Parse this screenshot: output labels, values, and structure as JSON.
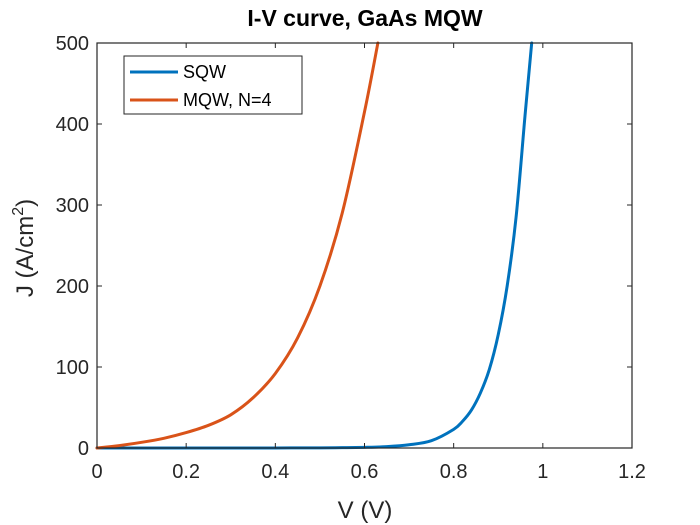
{
  "chart_data": {
    "type": "line",
    "title": "I-V curve, GaAs MQW",
    "xlabel": "V (V)",
    "ylabel_main": "J (A/cm",
    "ylabel_sup": "2",
    "ylabel_close": ")",
    "xlim": [
      0,
      1.2
    ],
    "ylim": [
      0,
      500
    ],
    "xticks": [
      0,
      0.2,
      0.4,
      0.6,
      0.8,
      1,
      1.2
    ],
    "xtick_labels": [
      "0",
      "0.2",
      "0.4",
      "0.6",
      "0.8",
      "1",
      "1.2"
    ],
    "yticks": [
      0,
      100,
      200,
      300,
      400,
      500
    ],
    "ytick_labels": [
      "0",
      "100",
      "200",
      "300",
      "400",
      "500"
    ],
    "grid": true,
    "legend_position": "top-left",
    "series": [
      {
        "name": "SQW",
        "color": "#0072BD",
        "x": [
          0,
          0.1,
          0.2,
          0.3,
          0.4,
          0.5,
          0.55,
          0.6,
          0.65,
          0.7,
          0.75,
          0.8,
          0.82,
          0.84,
          0.86,
          0.88,
          0.9,
          0.92,
          0.94,
          0.96,
          0.975
        ],
        "y": [
          0,
          0,
          0,
          0,
          0.05,
          0.2,
          0.4,
          0.8,
          1.7,
          4,
          9,
          23,
          33,
          47,
          68,
          97,
          140,
          200,
          285,
          410,
          500
        ]
      },
      {
        "name": "MQW, N=4",
        "color": "#D95319",
        "x": [
          0,
          0.05,
          0.1,
          0.15,
          0.2,
          0.25,
          0.3,
          0.35,
          0.4,
          0.45,
          0.5,
          0.55,
          0.6,
          0.63
        ],
        "y": [
          0,
          3,
          7,
          12,
          19,
          28,
          41,
          62,
          92,
          136,
          200,
          290,
          415,
          500
        ]
      }
    ]
  }
}
